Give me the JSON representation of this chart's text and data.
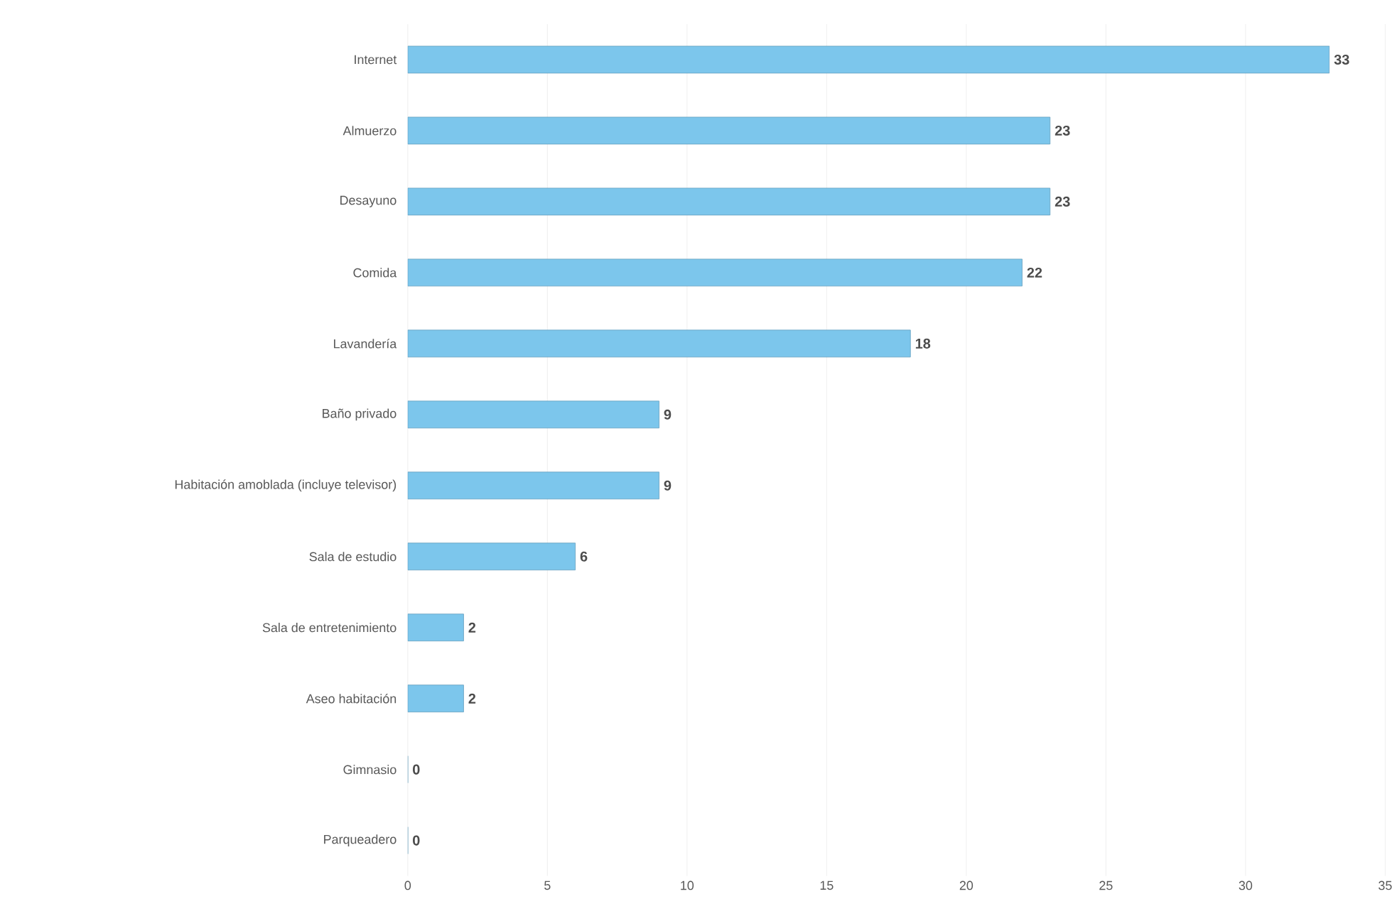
{
  "chart_data": {
    "type": "bar",
    "orientation": "horizontal",
    "categories": [
      "Internet",
      "Almuerzo",
      "Desayuno",
      "Comida",
      "Lavandería",
      "Baño privado",
      "Habitación amoblada (incluye televisor)",
      "Sala de estudio",
      "Sala de entretenimiento",
      "Aseo habitación",
      "Gimnasio",
      "Parqueadero"
    ],
    "values": [
      33,
      23,
      23,
      22,
      18,
      9,
      9,
      6,
      2,
      2,
      0,
      0
    ],
    "color": "#7cc6ec",
    "xlim": [
      0,
      35
    ],
    "xticks": [
      0,
      5,
      10,
      15,
      20,
      25,
      30,
      35
    ],
    "grid": "x",
    "data_labels": true
  }
}
